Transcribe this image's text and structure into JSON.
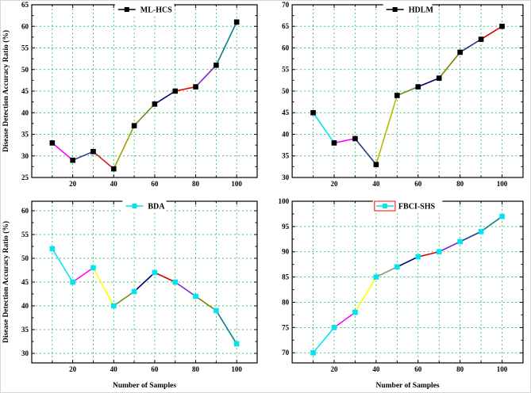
{
  "figure": {
    "background": "#ffffff",
    "grid_color": "#00b050",
    "axis_color": "#000000",
    "legend_box_color": "#ff0000"
  },
  "chart_data": [
    {
      "type": "line",
      "legend": {
        "label": "ML-HCS",
        "boxed": false
      },
      "xlabel": "",
      "ylabel": "Disease Detection Accuracy Ratio (%)",
      "x": [
        10,
        20,
        30,
        40,
        50,
        60,
        70,
        80,
        90,
        100
      ],
      "y": [
        33,
        29,
        31,
        27,
        37,
        42,
        45,
        46,
        51,
        61
      ],
      "xlim": [
        0,
        110
      ],
      "ylim": [
        25,
        65
      ],
      "xticks": [
        20,
        40,
        60,
        80,
        100
      ],
      "yticks": [
        25,
        30,
        35,
        40,
        45,
        50,
        55,
        60,
        65
      ],
      "grid_x_step": 10,
      "grid": true,
      "grid_color": "#00b050",
      "marker": "square",
      "marker_color": "#000000",
      "legend_line_color": "#000000",
      "segment_colors": [
        "#ff00ff",
        "#3232a0",
        "#cc2020",
        "#a0a000",
        "#6b8e23",
        "#000080",
        "#ee0000",
        "#7d26cd",
        "#008080"
      ]
    },
    {
      "type": "line",
      "legend": {
        "label": "HDLM",
        "boxed": false
      },
      "xlabel": "",
      "ylabel": "",
      "x": [
        10,
        20,
        30,
        40,
        50,
        60,
        70,
        80,
        90,
        100
      ],
      "y": [
        45,
        38,
        39,
        33,
        49,
        51,
        53,
        59,
        62,
        65
      ],
      "xlim": [
        0,
        110
      ],
      "ylim": [
        30,
        70
      ],
      "xticks": [
        20,
        40,
        60,
        80,
        100
      ],
      "yticks": [
        30,
        35,
        40,
        45,
        50,
        55,
        60,
        65,
        70
      ],
      "grid_x_step": 10,
      "grid": true,
      "grid_color": "#00b050",
      "marker": "square",
      "marker_color": "#000000",
      "legend_line_color": "#000000",
      "segment_colors": [
        "#00e5ee",
        "#ff00ff",
        "#283593",
        "#b8b800",
        "#6b8e23",
        "#000080",
        "#808000",
        "#283593",
        "#cc0000"
      ]
    },
    {
      "type": "line",
      "legend": {
        "label": "BDA",
        "boxed": false
      },
      "xlabel": "Number of Samples",
      "ylabel": "Disease Detection Accuracy Ratio (%)",
      "x": [
        10,
        20,
        30,
        40,
        50,
        60,
        70,
        80,
        90,
        100
      ],
      "y": [
        52,
        45,
        48,
        40,
        43,
        47,
        45,
        42,
        39,
        32
      ],
      "xlim": [
        0,
        110
      ],
      "ylim": [
        28,
        62
      ],
      "xticks": [
        20,
        40,
        60,
        80,
        100
      ],
      "yticks": [
        30,
        35,
        40,
        45,
        50,
        55,
        60
      ],
      "grid_x_step": 10,
      "grid": true,
      "grid_color": "#00b050",
      "marker": "square",
      "marker_color": "#00e5ee",
      "legend_line_color": "#00e5ee",
      "segment_colors": [
        "#00e5ee",
        "#ff00ff",
        "#ffff00",
        "#6b8e23",
        "#000080",
        "#cc0000",
        "#7d26cd",
        "#808000",
        "#008080"
      ]
    },
    {
      "type": "line",
      "legend": {
        "label": "FBCI-SHS",
        "boxed": true
      },
      "xlabel": "Number of Samples",
      "ylabel": "",
      "x": [
        10,
        20,
        30,
        40,
        50,
        60,
        70,
        80,
        90,
        100
      ],
      "y": [
        70,
        75,
        78,
        85,
        87,
        89,
        90,
        92,
        94,
        97
      ],
      "xlim": [
        0,
        110
      ],
      "ylim": [
        68,
        100
      ],
      "xticks": [
        20,
        40,
        60,
        80,
        100
      ],
      "yticks": [
        70,
        75,
        80,
        85,
        90,
        95,
        100
      ],
      "grid_x_step": 10,
      "grid": true,
      "grid_color": "#00b050",
      "marker": "square",
      "marker_color": "#00e5ee",
      "legend_line_color": "#00e5ee",
      "segment_colors": [
        "#00e5ee",
        "#ff00ff",
        "#ffff00",
        "#8f9779",
        "#000080",
        "#cc0000",
        "#7d26cd",
        "#283593",
        "#008080"
      ]
    }
  ]
}
